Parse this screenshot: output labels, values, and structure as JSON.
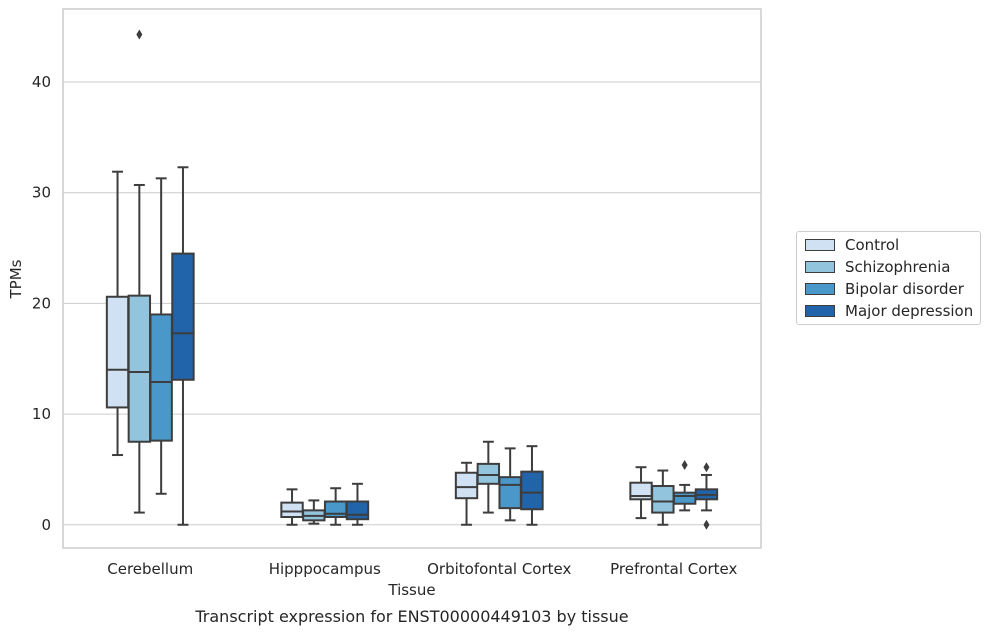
{
  "chart_data": {
    "type": "box",
    "title": "Transcript expression for ENST00000449103 by tissue",
    "xlabel": "Tissue",
    "ylabel": "TPMs",
    "categories": [
      "Cerebellum",
      "Hipppocampus",
      "Orbitofontal Cortex",
      "Prefrontal Cortex"
    ],
    "ylim": [
      -2.1,
      46.6
    ],
    "yticks": [
      0,
      10,
      20,
      30,
      40
    ],
    "grid": true,
    "legend_position": "right",
    "series": [
      {
        "name": "Control",
        "color": "#cfe1f2",
        "boxes": [
          {
            "min": 6.3,
            "q1": 10.6,
            "median": 14.0,
            "q3": 20.6,
            "max": 31.9,
            "outliers": []
          },
          {
            "min": 0.0,
            "q1": 0.7,
            "median": 1.2,
            "q3": 2.0,
            "max": 3.2,
            "outliers": []
          },
          {
            "min": 0.0,
            "q1": 2.4,
            "median": 3.4,
            "q3": 4.7,
            "max": 5.6,
            "outliers": []
          },
          {
            "min": 0.6,
            "q1": 2.3,
            "median": 2.6,
            "q3": 3.8,
            "max": 5.2,
            "outliers": []
          }
        ]
      },
      {
        "name": "Schizophrenia",
        "color": "#93c4de",
        "boxes": [
          {
            "min": 1.1,
            "q1": 7.5,
            "median": 13.8,
            "q3": 20.7,
            "max": 30.7,
            "outliers": [
              44.3
            ]
          },
          {
            "min": 0.1,
            "q1": 0.4,
            "median": 0.8,
            "q3": 1.3,
            "max": 2.2,
            "outliers": []
          },
          {
            "min": 1.1,
            "q1": 3.7,
            "median": 4.5,
            "q3": 5.5,
            "max": 7.5,
            "outliers": []
          },
          {
            "min": 0.0,
            "q1": 1.1,
            "median": 2.1,
            "q3": 3.5,
            "max": 4.9,
            "outliers": []
          }
        ]
      },
      {
        "name": "Bipolar disorder",
        "color": "#4a98c9",
        "boxes": [
          {
            "min": 2.8,
            "q1": 7.6,
            "median": 12.9,
            "q3": 19.0,
            "max": 31.3,
            "outliers": []
          },
          {
            "min": 0.0,
            "q1": 0.7,
            "median": 1.0,
            "q3": 2.1,
            "max": 3.3,
            "outliers": []
          },
          {
            "min": 0.4,
            "q1": 1.5,
            "median": 3.6,
            "q3": 4.3,
            "max": 6.9,
            "outliers": []
          },
          {
            "min": 1.3,
            "q1": 1.9,
            "median": 2.6,
            "q3": 2.9,
            "max": 3.6,
            "outliers": [
              5.4
            ]
          }
        ]
      },
      {
        "name": "Major depression",
        "color": "#2264aa",
        "boxes": [
          {
            "min": 0.0,
            "q1": 13.1,
            "median": 17.3,
            "q3": 24.5,
            "max": 32.3,
            "outliers": []
          },
          {
            "min": 0.0,
            "q1": 0.5,
            "median": 0.9,
            "q3": 2.1,
            "max": 3.7,
            "outliers": []
          },
          {
            "min": 0.0,
            "q1": 1.4,
            "median": 2.9,
            "q3": 4.8,
            "max": 7.1,
            "outliers": []
          },
          {
            "min": 1.3,
            "q1": 2.3,
            "median": 2.7,
            "q3": 3.2,
            "max": 4.5,
            "outliers": [
              5.2,
              0.0
            ]
          }
        ]
      }
    ]
  }
}
